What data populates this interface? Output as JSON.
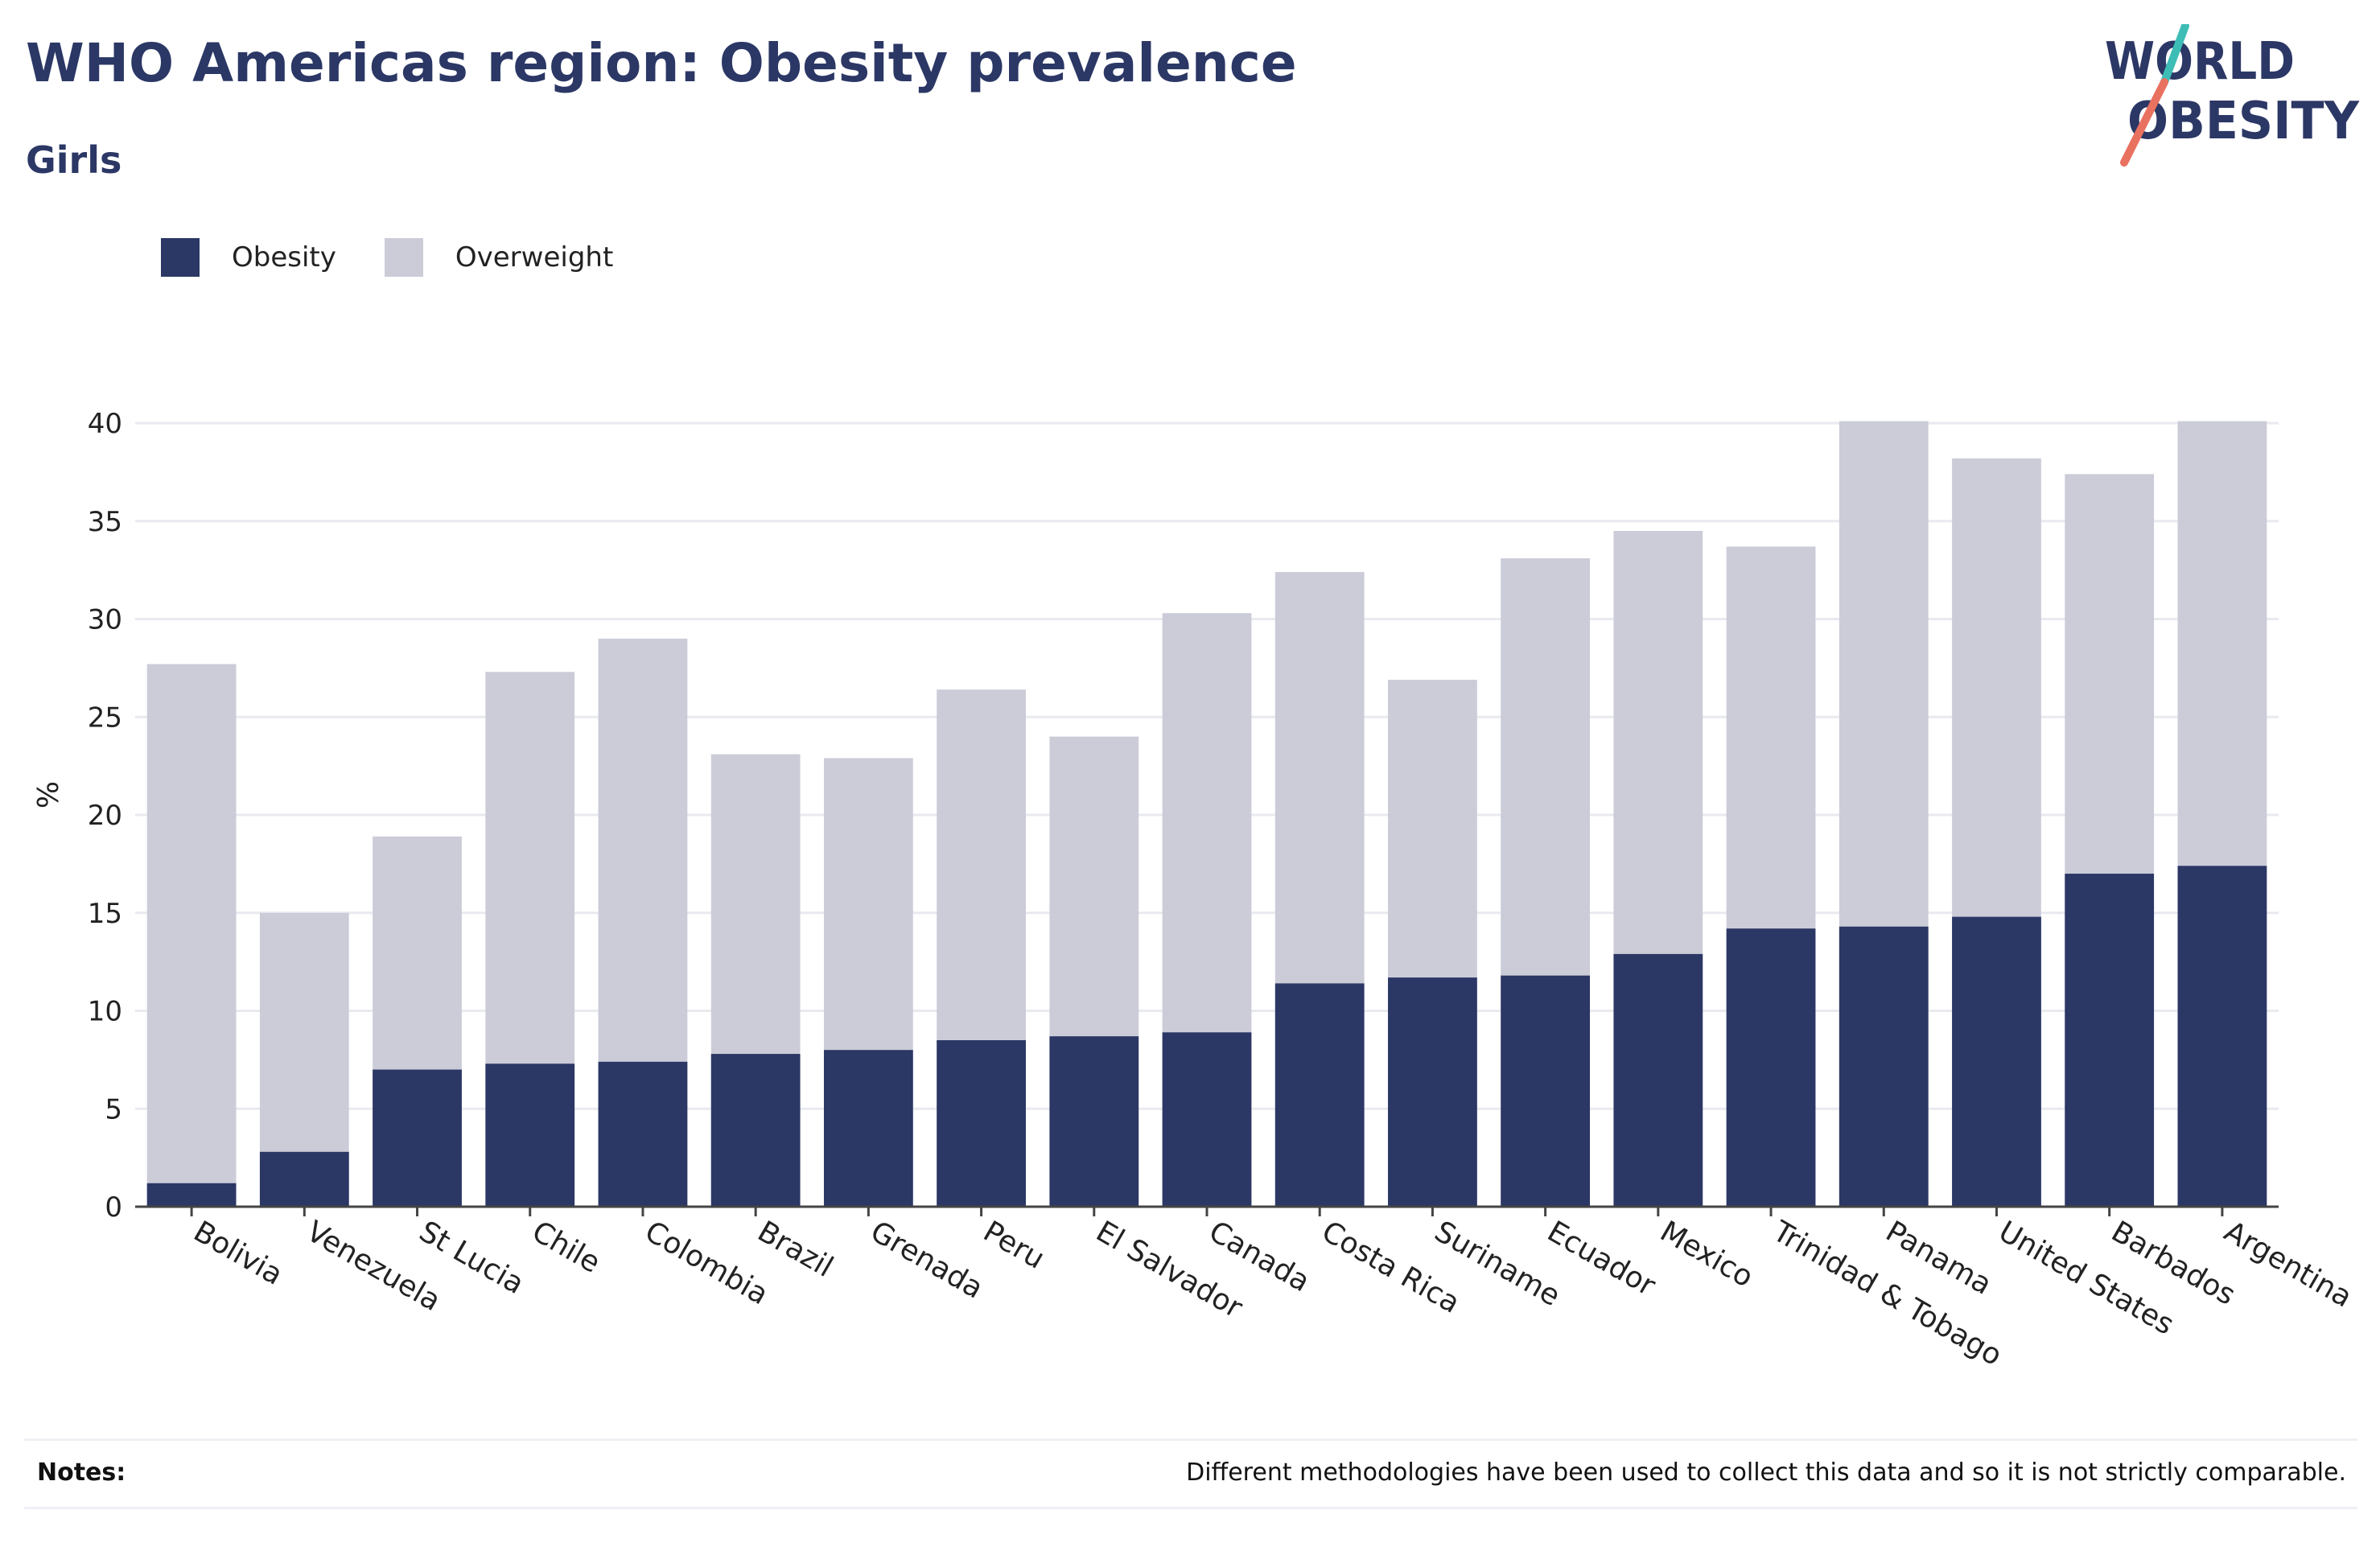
{
  "header": {
    "title": "WHO Americas region: Obesity prevalence",
    "subtitle": "Girls"
  },
  "logo": {
    "line1": "WORLD",
    "line2": "OBESITY",
    "text_color": "#2b3765",
    "slash_top_color": "#3dbdb5",
    "slash_bottom_color": "#e8715f"
  },
  "legend": {
    "items": [
      {
        "label": "Obesity",
        "color": "#2b3765"
      },
      {
        "label": "Overweight",
        "color": "#cbccd8"
      }
    ]
  },
  "notes": {
    "label": "Notes:",
    "text": "Different methodologies have been used to collect this data and so it is not strictly comparable."
  },
  "chart_data": {
    "type": "bar",
    "stacking": "overlay",
    "ylabel": "%",
    "xlabel": "",
    "ylim": [
      0,
      40
    ],
    "yticks": [
      0,
      5,
      10,
      15,
      20,
      25,
      30,
      35,
      40
    ],
    "grid": true,
    "legend_position": "top-left",
    "categories": [
      "Bolivia",
      "Venezuela",
      "St Lucia",
      "Chile",
      "Colombia",
      "Brazil",
      "Grenada",
      "Peru",
      "El Salvador",
      "Canada",
      "Costa Rica",
      "Suriname",
      "Ecuador",
      "Mexico",
      "Trinidad & Tobago",
      "Panama",
      "United States",
      "Barbados",
      "Argentina"
    ],
    "series": [
      {
        "name": "Overweight",
        "color": "#cbccd8",
        "values": [
          27.7,
          15.0,
          18.9,
          27.3,
          29.0,
          23.1,
          22.9,
          26.4,
          24.0,
          30.3,
          32.4,
          26.9,
          33.1,
          34.5,
          33.7,
          40.1,
          38.2,
          37.4,
          40.1
        ]
      },
      {
        "name": "Obesity",
        "color": "#2b3765",
        "values": [
          1.2,
          2.8,
          7.0,
          7.3,
          7.4,
          7.8,
          8.0,
          8.5,
          8.7,
          8.9,
          11.4,
          11.7,
          11.8,
          12.9,
          14.2,
          14.3,
          14.8,
          17.0,
          17.4
        ]
      }
    ]
  }
}
